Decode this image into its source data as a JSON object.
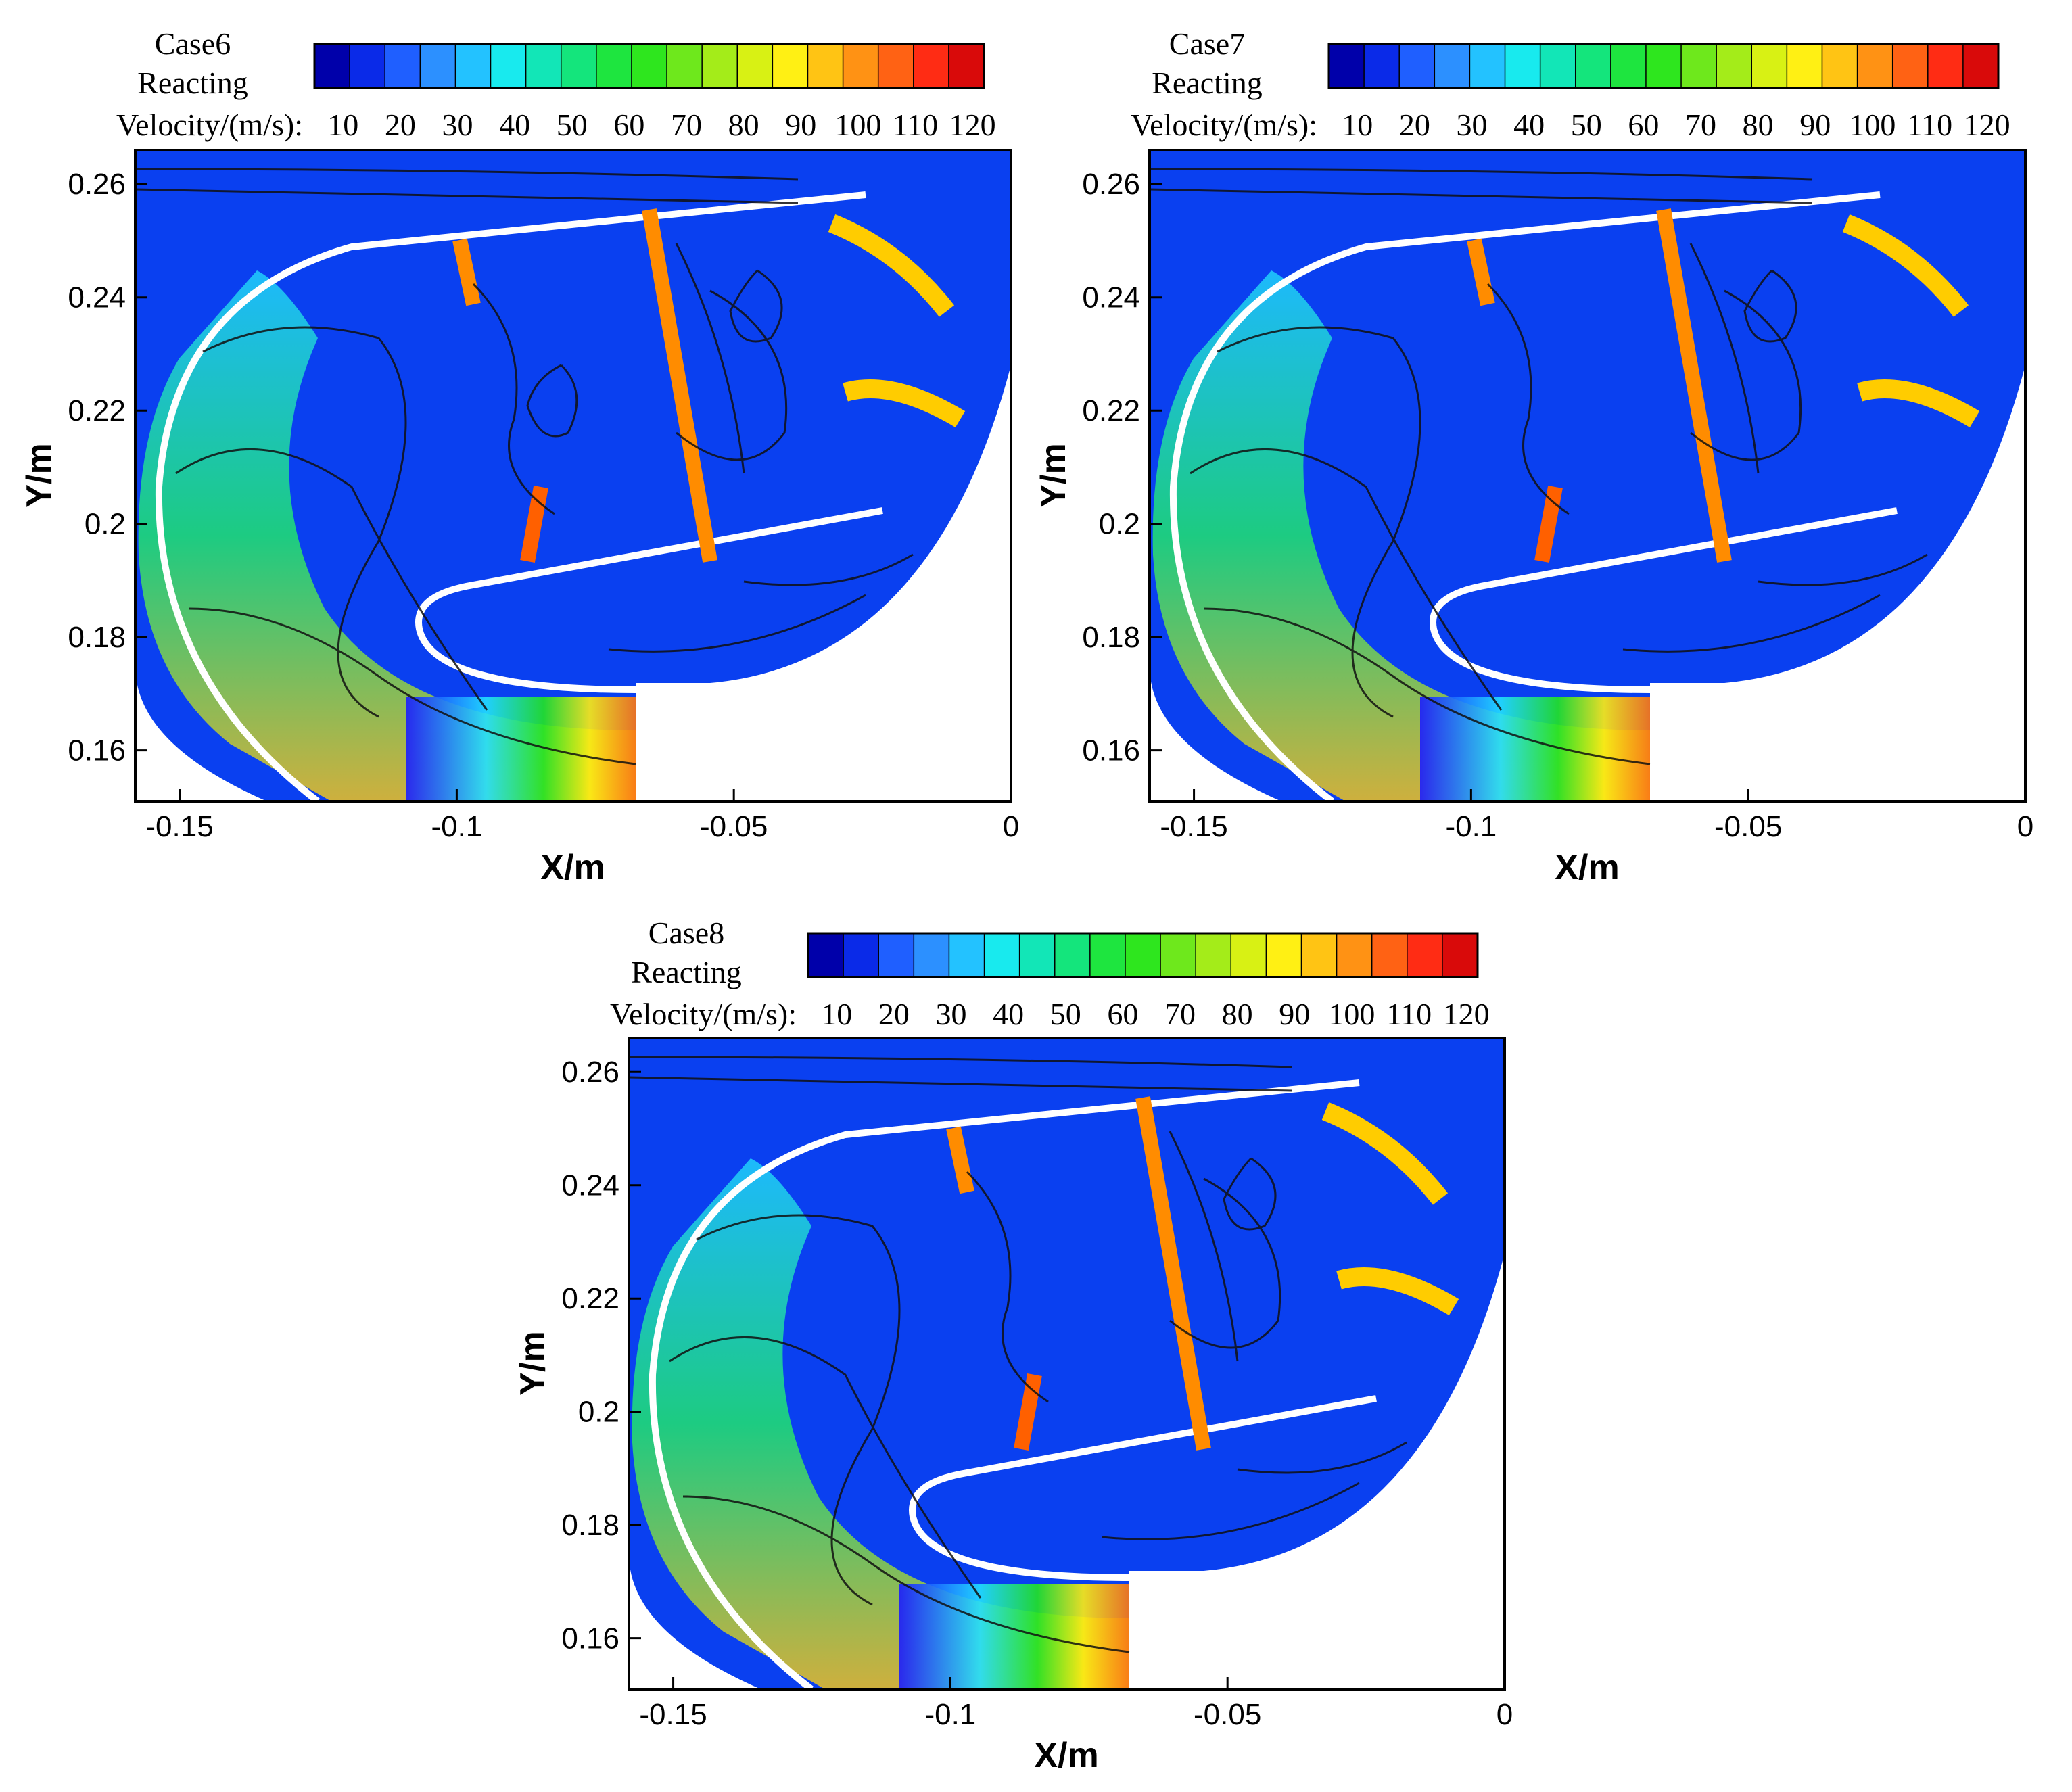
{
  "chart_data": [
    {
      "type": "contour",
      "case_label": "Case6",
      "condition_label": "Reacting",
      "colorbar": {
        "variable_label": "Velocity/(m/s):",
        "ticks": [
          10,
          20,
          30,
          40,
          50,
          60,
          70,
          80,
          90,
          100,
          110,
          120
        ],
        "tick_labels": [
          "10",
          "20",
          "30",
          "40",
          "50",
          "60",
          "70",
          "80",
          "90",
          "100",
          "110",
          "120"
        ],
        "range": [
          5,
          122
        ],
        "colormap": [
          "#0000aa",
          "#0a2ae8",
          "#1f5fff",
          "#2c90ff",
          "#23c2ff",
          "#18eaee",
          "#12e6b7",
          "#14e57c",
          "#1ee53f",
          "#2ee61e",
          "#6ee81c",
          "#a4ec19",
          "#d8f114",
          "#fff014",
          "#ffc414",
          "#ff9214",
          "#ff6214",
          "#ff2c14",
          "#d90a0a"
        ]
      },
      "xlabel": "X/m",
      "ylabel": "Y/m",
      "xlim": [
        -0.158,
        0
      ],
      "ylim": [
        0.151,
        0.266
      ],
      "xticks": [
        -0.15,
        -0.1,
        -0.05,
        0
      ],
      "xtick_labels": [
        "-0.15",
        "-0.1",
        "-0.05",
        "0"
      ],
      "yticks": [
        0.16,
        0.18,
        0.2,
        0.22,
        0.24,
        0.26
      ],
      "ytick_labels": [
        "0.16",
        "0.18",
        "0.2",
        "0.22",
        "0.24",
        "0.26"
      ]
    },
    {
      "type": "contour",
      "case_label": "Case7",
      "condition_label": "Reacting",
      "colorbar": {
        "variable_label": "Velocity/(m/s):",
        "ticks": [
          10,
          20,
          30,
          40,
          50,
          60,
          70,
          80,
          90,
          100,
          110,
          120
        ],
        "tick_labels": [
          "10",
          "20",
          "30",
          "40",
          "50",
          "60",
          "70",
          "80",
          "90",
          "100",
          "110",
          "120"
        ],
        "range": [
          5,
          122
        ],
        "colormap": [
          "#0000aa",
          "#0a2ae8",
          "#1f5fff",
          "#2c90ff",
          "#23c2ff",
          "#18eaee",
          "#12e6b7",
          "#14e57c",
          "#1ee53f",
          "#2ee61e",
          "#6ee81c",
          "#a4ec19",
          "#d8f114",
          "#fff014",
          "#ffc414",
          "#ff9214",
          "#ff6214",
          "#ff2c14",
          "#d90a0a"
        ]
      },
      "xlabel": "X/m",
      "ylabel": "Y/m",
      "xlim": [
        -0.158,
        0
      ],
      "ylim": [
        0.151,
        0.266
      ],
      "xticks": [
        -0.15,
        -0.1,
        -0.05,
        0
      ],
      "xtick_labels": [
        "-0.15",
        "-0.1",
        "-0.05",
        "0"
      ],
      "yticks": [
        0.16,
        0.18,
        0.2,
        0.22,
        0.24,
        0.26
      ],
      "ytick_labels": [
        "0.16",
        "0.18",
        "0.2",
        "0.22",
        "0.24",
        "0.26"
      ]
    },
    {
      "type": "contour",
      "case_label": "Case8",
      "condition_label": "Reacting",
      "colorbar": {
        "variable_label": "Velocity/(m/s):",
        "ticks": [
          10,
          20,
          30,
          40,
          50,
          60,
          70,
          80,
          90,
          100,
          110,
          120
        ],
        "tick_labels": [
          "10",
          "20",
          "30",
          "40",
          "50",
          "60",
          "70",
          "80",
          "90",
          "100",
          "110",
          "120"
        ],
        "range": [
          5,
          122
        ],
        "colormap": [
          "#0000aa",
          "#0a2ae8",
          "#1f5fff",
          "#2c90ff",
          "#23c2ff",
          "#18eaee",
          "#12e6b7",
          "#14e57c",
          "#1ee53f",
          "#2ee61e",
          "#6ee81c",
          "#a4ec19",
          "#d8f114",
          "#fff014",
          "#ffc414",
          "#ff9214",
          "#ff6214",
          "#ff2c14",
          "#d90a0a"
        ]
      },
      "xlabel": "X/m",
      "ylabel": "Y/m",
      "xlim": [
        -0.158,
        0
      ],
      "ylim": [
        0.151,
        0.266
      ],
      "xticks": [
        -0.15,
        -0.1,
        -0.05,
        0
      ],
      "xtick_labels": [
        "-0.15",
        "-0.1",
        "-0.05",
        "0"
      ],
      "yticks": [
        0.16,
        0.18,
        0.2,
        0.22,
        0.24,
        0.26
      ],
      "ytick_labels": [
        "0.16",
        "0.18",
        "0.2",
        "0.22",
        "0.24",
        "0.26"
      ]
    }
  ]
}
